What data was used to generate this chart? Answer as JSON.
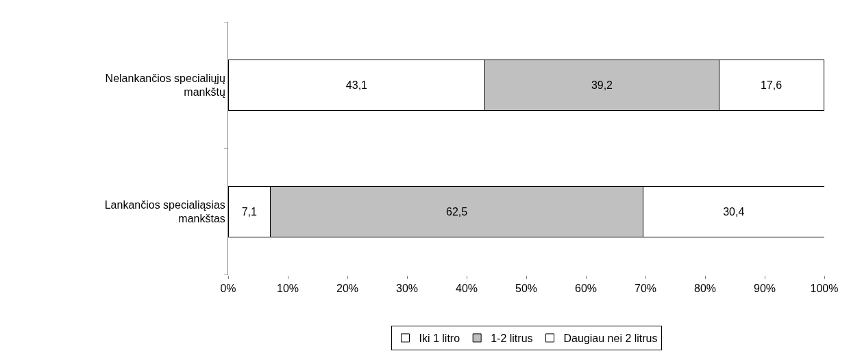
{
  "chart_data": {
    "type": "bar",
    "orientation": "horizontal",
    "stacked": true,
    "categories": [
      "Nelankančios specialiųjų mankštų",
      "Lankančios specialiąsias mankštas"
    ],
    "series": [
      {
        "name": "Iki 1 litro",
        "color": "#ffffff",
        "values": [
          43.1,
          7.1
        ],
        "value_labels": [
          "43,1",
          "7,1"
        ]
      },
      {
        "name": "1-2 litrus",
        "color": "#c0c0c0",
        "values": [
          39.2,
          62.5
        ],
        "value_labels": [
          "39,2",
          "62,5"
        ]
      },
      {
        "name": "Daugiau nei 2 litrus",
        "color": "#ffffff",
        "values": [
          17.6,
          30.4
        ],
        "value_labels": [
          "17,6",
          "30,4"
        ]
      }
    ],
    "xlim": [
      0,
      100
    ],
    "xticks": [
      {
        "value": 0,
        "label": "0%"
      },
      {
        "value": 10,
        "label": "10%"
      },
      {
        "value": 20,
        "label": "20%"
      },
      {
        "value": 30,
        "label": "30%"
      },
      {
        "value": 40,
        "label": "40%"
      },
      {
        "value": 50,
        "label": "50%"
      },
      {
        "value": 60,
        "label": "60%"
      },
      {
        "value": 70,
        "label": "70%"
      },
      {
        "value": 80,
        "label": "80%"
      },
      {
        "value": 90,
        "label": "90%"
      },
      {
        "value": 100,
        "label": "100%"
      }
    ],
    "legend": "bottom"
  }
}
